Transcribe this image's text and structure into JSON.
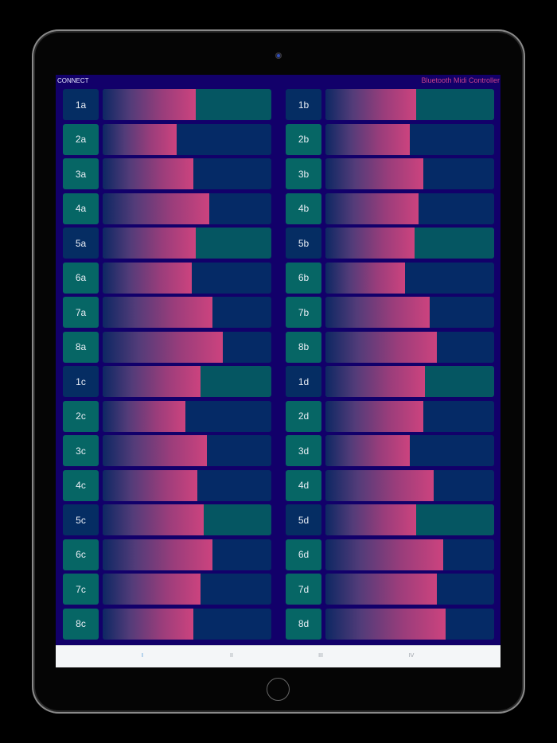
{
  "app": {
    "connect_label": "CONNECT",
    "title": "Bluetooth Midi Controller"
  },
  "colors": {
    "background": "#12006a",
    "label_navy": "#052d63",
    "label_teal": "#066665",
    "track_navy": "#052a66",
    "track_teal": "#055662",
    "fill_start": "#0d2763",
    "fill_end": "#cc437e",
    "title": "#c8408a",
    "active_tab": "#3d8fd8"
  },
  "columns": [
    {
      "rows": [
        {
          "label": "1a",
          "value": 55,
          "variant": "alt"
        },
        {
          "label": "2a",
          "value": 44,
          "variant": "std"
        },
        {
          "label": "3a",
          "value": 54,
          "variant": "std"
        },
        {
          "label": "4a",
          "value": 63,
          "variant": "std"
        },
        {
          "label": "5a",
          "value": 55,
          "variant": "alt"
        },
        {
          "label": "6a",
          "value": 53,
          "variant": "std"
        },
        {
          "label": "7a",
          "value": 65,
          "variant": "std"
        },
        {
          "label": "8a",
          "value": 71,
          "variant": "std"
        },
        {
          "label": "1c",
          "value": 58,
          "variant": "alt"
        },
        {
          "label": "2c",
          "value": 49,
          "variant": "std"
        },
        {
          "label": "3c",
          "value": 62,
          "variant": "std"
        },
        {
          "label": "4c",
          "value": 56,
          "variant": "std"
        },
        {
          "label": "5c",
          "value": 60,
          "variant": "alt"
        },
        {
          "label": "6c",
          "value": 65,
          "variant": "std"
        },
        {
          "label": "7c",
          "value": 58,
          "variant": "std"
        },
        {
          "label": "8c",
          "value": 54,
          "variant": "std"
        }
      ]
    },
    {
      "rows": [
        {
          "label": "1b",
          "value": 54,
          "variant": "alt"
        },
        {
          "label": "2b",
          "value": 50,
          "variant": "std"
        },
        {
          "label": "3b",
          "value": 58,
          "variant": "std"
        },
        {
          "label": "4b",
          "value": 55,
          "variant": "std"
        },
        {
          "label": "5b",
          "value": 53,
          "variant": "alt"
        },
        {
          "label": "6b",
          "value": 47,
          "variant": "std"
        },
        {
          "label": "7b",
          "value": 62,
          "variant": "std"
        },
        {
          "label": "8b",
          "value": 66,
          "variant": "std"
        },
        {
          "label": "1d",
          "value": 59,
          "variant": "alt"
        },
        {
          "label": "2d",
          "value": 58,
          "variant": "std"
        },
        {
          "label": "3d",
          "value": 50,
          "variant": "std"
        },
        {
          "label": "4d",
          "value": 64,
          "variant": "std"
        },
        {
          "label": "5d",
          "value": 54,
          "variant": "alt"
        },
        {
          "label": "6d",
          "value": 70,
          "variant": "std"
        },
        {
          "label": "7d",
          "value": 66,
          "variant": "std"
        },
        {
          "label": "8d",
          "value": 71,
          "variant": "std"
        }
      ]
    }
  ],
  "tabs": [
    {
      "label": "I",
      "active": true
    },
    {
      "label": "II",
      "active": false
    },
    {
      "label": "III",
      "active": false
    },
    {
      "label": "IV",
      "active": false
    }
  ]
}
